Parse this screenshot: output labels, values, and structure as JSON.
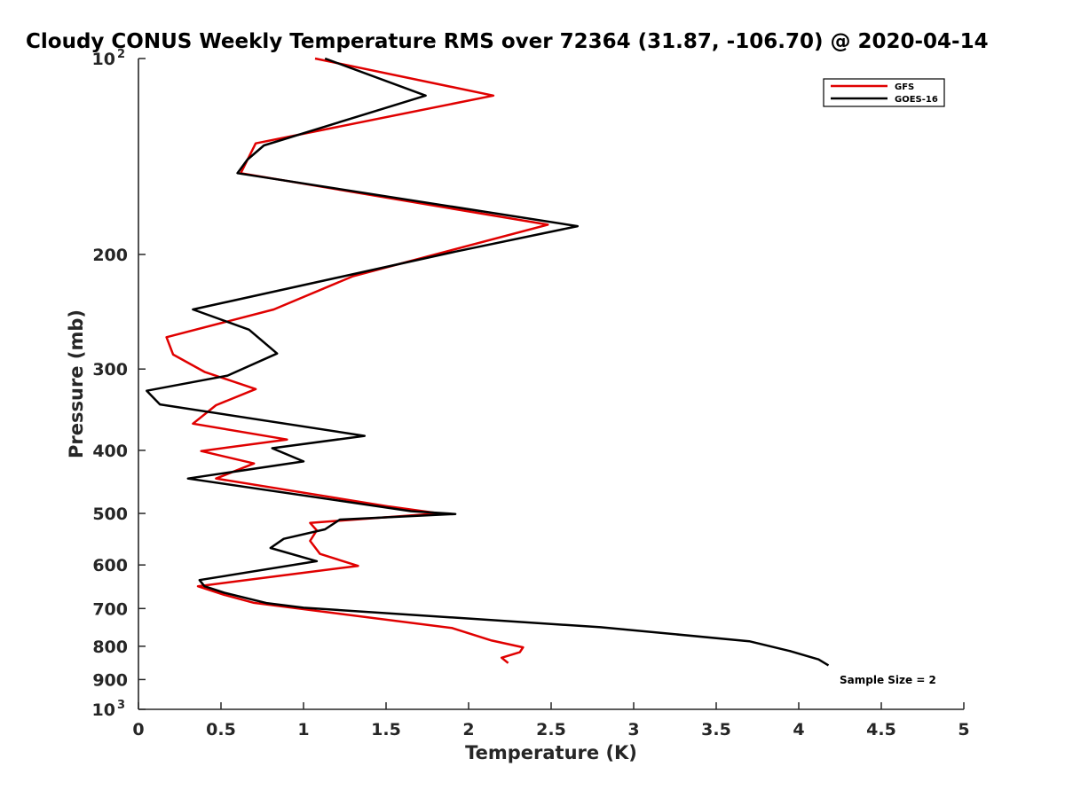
{
  "chart_data": {
    "type": "line",
    "title": "Cloudy CONUS Weekly Temperature RMS over 72364 (31.87, -106.70) @ 2020-04-14",
    "xlabel": "Temperature (K)",
    "ylabel": "Pressure (mb)",
    "xlim": [
      0,
      5
    ],
    "ylim": [
      100,
      1000
    ],
    "y_scale": "log",
    "y_reversed": true,
    "x_ticks": [
      "0",
      "0.5",
      "1",
      "1.5",
      "2",
      "2.5",
      "3",
      "3.5",
      "4",
      "4.5",
      "5"
    ],
    "x_tick_values": [
      0,
      0.5,
      1,
      1.5,
      2,
      2.5,
      3,
      3.5,
      4,
      4.5,
      5
    ],
    "y_ticks": [
      {
        "value": 100,
        "label": "10",
        "sup": "2"
      },
      {
        "value": 200,
        "label": "200",
        "sup": ""
      },
      {
        "value": 300,
        "label": "300",
        "sup": ""
      },
      {
        "value": 400,
        "label": "400",
        "sup": ""
      },
      {
        "value": 500,
        "label": "500",
        "sup": ""
      },
      {
        "value": 600,
        "label": "600",
        "sup": ""
      },
      {
        "value": 700,
        "label": "700",
        "sup": ""
      },
      {
        "value": 800,
        "label": "800",
        "sup": ""
      },
      {
        "value": 900,
        "label": "900",
        "sup": ""
      },
      {
        "value": 1000,
        "label": "10",
        "sup": "3"
      }
    ],
    "grid": false,
    "legend_position": "top-right",
    "series": [
      {
        "name": "GFS",
        "color": "#e00000",
        "x": [
          1.07,
          2.15,
          0.71,
          0.62,
          2.48,
          1.3,
          0.82,
          0.17,
          0.21,
          0.4,
          0.71,
          0.47,
          0.33,
          0.9,
          0.38,
          0.7,
          0.47,
          1.52,
          1.82,
          1.04,
          1.08,
          1.04,
          1.1,
          1.33,
          0.82,
          0.36,
          0.52,
          0.7,
          1.9,
          2.14,
          2.33,
          2.31,
          2.2,
          2.24
        ],
        "y": [
          100,
          114,
          135,
          150,
          180,
          216,
          243,
          268,
          285,
          303,
          322,
          341,
          364,
          385,
          401,
          419,
          442,
          488,
          500,
          517,
          531,
          551,
          577,
          602,
          625,
          647,
          667,
          686,
          750,
          784,
          803,
          817,
          833,
          849
        ]
      },
      {
        "name": "GOES-16",
        "color": "#000000",
        "x": [
          1.13,
          1.74,
          0.76,
          0.66,
          0.6,
          2.66,
          1.92,
          0.33,
          0.67,
          0.84,
          0.54,
          0.05,
          0.13,
          1.37,
          0.81,
          1.0,
          0.3,
          1.65,
          1.92,
          1.22,
          1.13,
          0.88,
          0.8,
          1.08,
          0.37,
          0.4,
          0.52,
          0.78,
          1.0,
          2.8,
          3.7,
          3.95,
          4.12,
          4.18
        ],
        "y": [
          100,
          114,
          136,
          143,
          150,
          181,
          198,
          243,
          261,
          284,
          307,
          324,
          340,
          380,
          397,
          416,
          442,
          496,
          501,
          511,
          529,
          547,
          565,
          592,
          633,
          647,
          662,
          687,
          698,
          748,
          786,
          814,
          838,
          856
        ]
      }
    ],
    "annotations": [
      {
        "text": "Sample Size = 2"
      }
    ]
  }
}
